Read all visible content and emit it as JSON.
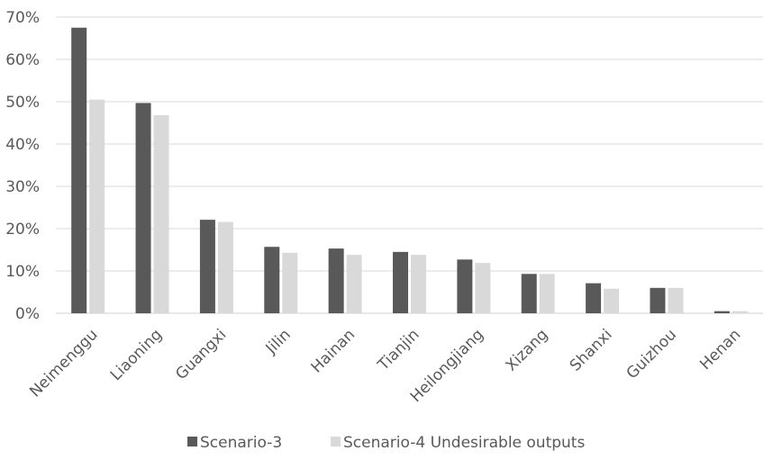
{
  "chart_data": {
    "type": "bar",
    "title": "",
    "xlabel": "",
    "ylabel": "",
    "ylim": [
      0,
      0.7
    ],
    "y_ticks": [
      0,
      0.1,
      0.2,
      0.3,
      0.4,
      0.5,
      0.6,
      0.7
    ],
    "y_tick_labels": [
      "0%",
      "10%",
      "20%",
      "30%",
      "40%",
      "50%",
      "60%",
      "70%"
    ],
    "grid": true,
    "legend_position": "bottom",
    "categories": [
      "Neimenggu",
      "Liaoning",
      "Guangxi",
      "Jilin",
      "Hainan",
      "Tianjin",
      "Heilongjiang",
      "Xizang",
      "Shanxi",
      "Guizhou",
      "Henan"
    ],
    "series": [
      {
        "name": "Scenario-3",
        "color": "#595959",
        "values": [
          0.675,
          0.497,
          0.221,
          0.157,
          0.153,
          0.145,
          0.127,
          0.093,
          0.071,
          0.06,
          0.005
        ]
      },
      {
        "name": "Scenario-4 Undesirable outputs",
        "color": "#d9d9d9",
        "values": [
          0.505,
          0.468,
          0.216,
          0.143,
          0.138,
          0.138,
          0.119,
          0.093,
          0.058,
          0.06,
          0.005
        ]
      }
    ]
  }
}
